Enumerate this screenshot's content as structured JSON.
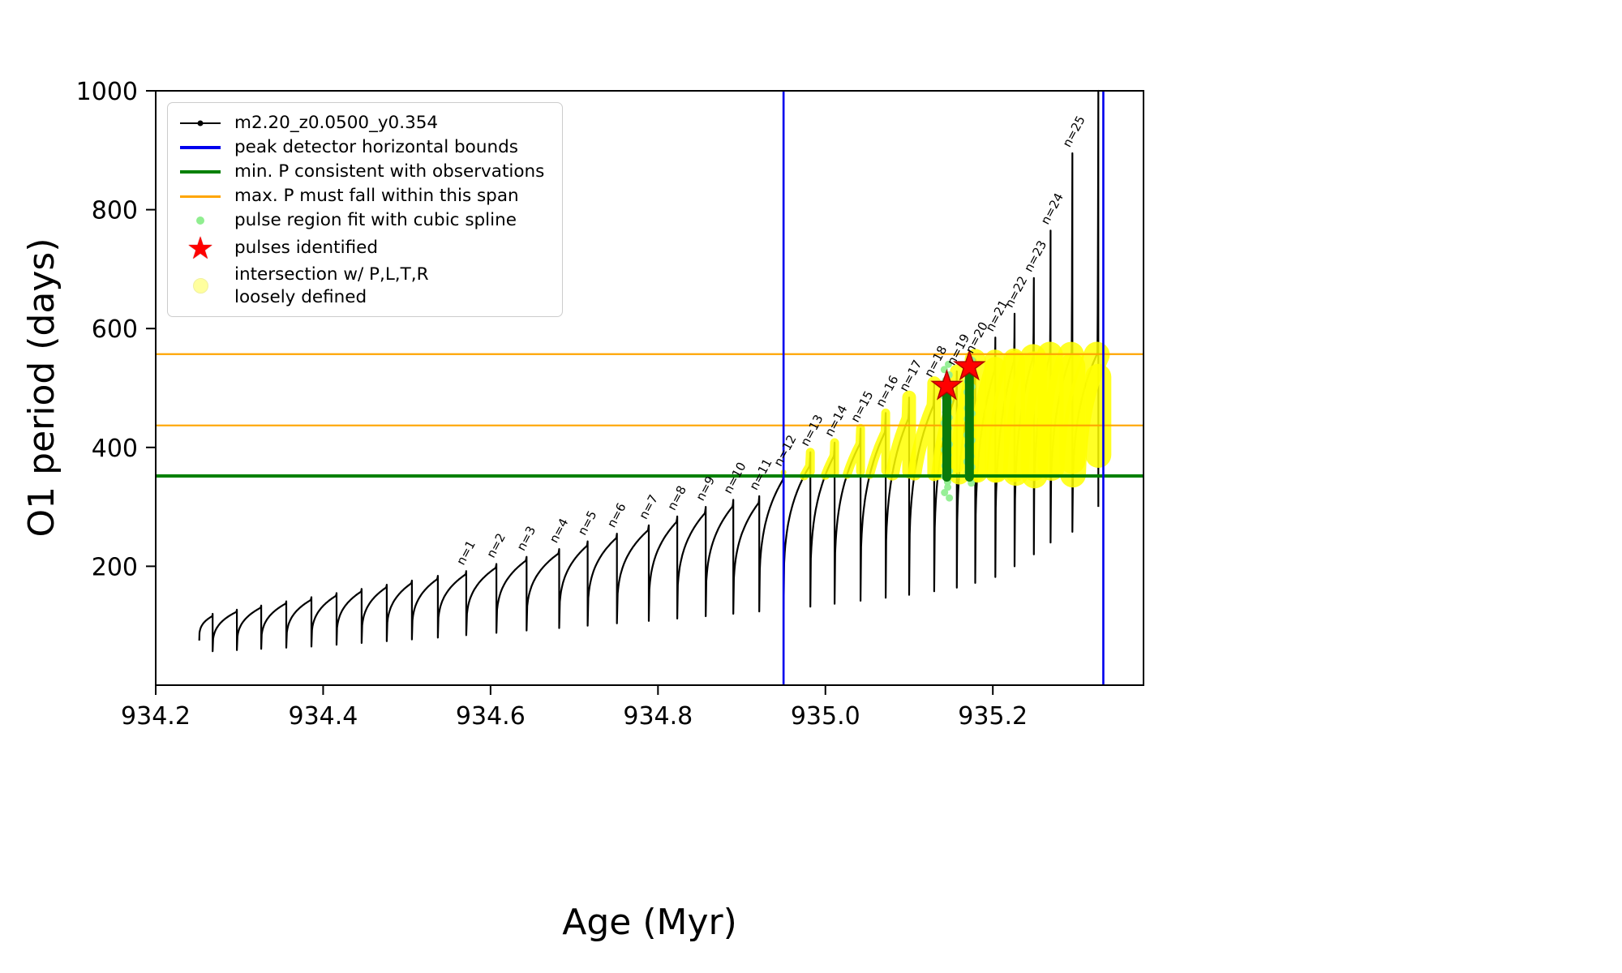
{
  "chart_data": {
    "type": "line",
    "title": "",
    "xlabel": "Age (Myr)",
    "ylabel": "O1 period (days)",
    "xlim": [
      934.2,
      935.38
    ],
    "ylim": [
      0,
      1000
    ],
    "xticks": [
      934.2,
      934.4,
      934.6,
      934.8,
      935.0,
      935.2
    ],
    "xtick_labels": [
      "934.2",
      "934.4",
      "934.6",
      "934.8",
      "935.0",
      "935.2"
    ],
    "yticks": [
      200,
      400,
      600,
      800,
      1000
    ],
    "ytick_labels": [
      "200",
      "400",
      "600",
      "800",
      "1000"
    ],
    "grid": false,
    "legend_position": "upper-left",
    "legend": [
      {
        "marker": "line-with-dot",
        "label": "m2.20_z0.0500_y0.354"
      },
      {
        "marker": "blue-line",
        "label": "peak detector horizontal bounds"
      },
      {
        "marker": "green-line",
        "label": "min. P consistent with observations"
      },
      {
        "marker": "orange-line",
        "label": "max. P must fall within this span"
      },
      {
        "marker": "lightgreen-dot",
        "label": "pulse region fit with cubic spline"
      },
      {
        "marker": "red-star",
        "label": "pulses identified"
      },
      {
        "marker": "yellow-dot",
        "label": "intersection w/ P,L,T,R\nloosely defined"
      }
    ],
    "colors": {
      "series": "#000000",
      "peak_bounds": "#0000ee",
      "min_p_line": "#008000",
      "max_p_lines": "#ffa500",
      "spline_dots": "#90ee90",
      "pulse_star": "#ff0000",
      "intersection": "#ffff00",
      "spline_bar": "#0a7a0a",
      "pulse_labels": "#1a1a1a"
    },
    "series_label": "m2.20_z0.0500_y0.354",
    "peak_detector_bounds_x": [
      934.95,
      935.332
    ],
    "min_P": 352,
    "max_P_span": [
      437,
      557
    ],
    "intersection_band": {
      "x": [
        934.95,
        935.332
      ],
      "p": [
        352,
        557
      ]
    },
    "pulses_identified": [
      {
        "age": 935.145,
        "period": 503
      },
      {
        "age": 935.172,
        "period": 536
      }
    ],
    "spline_regions": [
      {
        "age": 935.145,
        "dots_span": [
          315,
          540
        ],
        "bar_span": [
          350,
          498
        ]
      },
      {
        "age": 935.172,
        "dots_span": [
          340,
          552
        ],
        "bar_span": [
          350,
          524
        ]
      }
    ],
    "start_age": 934.252,
    "final_drop_to": 300,
    "cycles": [
      {
        "end": 934.268,
        "lo": 75,
        "sh": 116,
        "pk": 120,
        "n": null
      },
      {
        "end": 934.297,
        "lo": 57,
        "sh": 123,
        "pk": 127,
        "n": null
      },
      {
        "end": 934.326,
        "lo": 59,
        "sh": 130,
        "pk": 134,
        "n": null
      },
      {
        "end": 934.356,
        "lo": 61,
        "sh": 137,
        "pk": 141,
        "n": null
      },
      {
        "end": 934.386,
        "lo": 63,
        "sh": 143,
        "pk": 148,
        "n": null
      },
      {
        "end": 934.416,
        "lo": 65,
        "sh": 150,
        "pk": 155,
        "n": null
      },
      {
        "end": 934.446,
        "lo": 68,
        "sh": 157,
        "pk": 162,
        "n": null
      },
      {
        "end": 934.476,
        "lo": 71,
        "sh": 164,
        "pk": 169,
        "n": null
      },
      {
        "end": 934.506,
        "lo": 74,
        "sh": 171,
        "pk": 176,
        "n": null
      },
      {
        "end": 934.537,
        "lo": 77,
        "sh": 178,
        "pk": 184,
        "n": null
      },
      {
        "end": 934.571,
        "lo": 80,
        "sh": 186,
        "pk": 192,
        "n": 1
      },
      {
        "end": 934.607,
        "lo": 84,
        "sh": 197,
        "pk": 204,
        "n": 2
      },
      {
        "end": 934.643,
        "lo": 88,
        "sh": 209,
        "pk": 216,
        "n": 3
      },
      {
        "end": 934.682,
        "lo": 92,
        "sh": 221,
        "pk": 229,
        "n": 4
      },
      {
        "end": 934.716,
        "lo": 96,
        "sh": 234,
        "pk": 242,
        "n": 5
      },
      {
        "end": 934.751,
        "lo": 100,
        "sh": 247,
        "pk": 255,
        "n": 6
      },
      {
        "end": 934.789,
        "lo": 104,
        "sh": 260,
        "pk": 269,
        "n": 7
      },
      {
        "end": 934.823,
        "lo": 108,
        "sh": 274,
        "pk": 284,
        "n": 8
      },
      {
        "end": 934.857,
        "lo": 112,
        "sh": 289,
        "pk": 300,
        "n": 9
      },
      {
        "end": 934.89,
        "lo": 116,
        "sh": 300,
        "pk": 312,
        "n": 10
      },
      {
        "end": 934.921,
        "lo": 120,
        "sh": 306,
        "pk": 318,
        "n": 11
      },
      {
        "end": 934.95,
        "lo": 124,
        "sh": 345,
        "pk": 358,
        "n": 12
      },
      {
        "end": 934.982,
        "lo": 128,
        "sh": 368,
        "pk": 392,
        "n": 13
      },
      {
        "end": 935.011,
        "lo": 132,
        "sh": 385,
        "pk": 408,
        "n": 14
      },
      {
        "end": 935.042,
        "lo": 137,
        "sh": 405,
        "pk": 432,
        "n": 15
      },
      {
        "end": 935.072,
        "lo": 142,
        "sh": 425,
        "pk": 458,
        "n": 16
      },
      {
        "end": 935.1,
        "lo": 147,
        "sh": 448,
        "pk": 484,
        "n": 17
      },
      {
        "end": 935.13,
        "lo": 152,
        "sh": 470,
        "pk": 508,
        "n": 18
      },
      {
        "end": 935.157,
        "lo": 158,
        "sh": 490,
        "pk": 528,
        "n": 19
      },
      {
        "end": 935.179,
        "lo": 164,
        "sh": 512,
        "pk": 548,
        "n": 20
      },
      {
        "end": 935.203,
        "lo": 172,
        "sh": 530,
        "pk": 585,
        "n": 21
      },
      {
        "end": 935.226,
        "lo": 182,
        "sh": 545,
        "pk": 625,
        "n": 22
      },
      {
        "end": 935.249,
        "lo": 200,
        "sh": 552,
        "pk": 685,
        "n": 23
      },
      {
        "end": 935.269,
        "lo": 220,
        "sh": 556,
        "pk": 765,
        "n": 24
      },
      {
        "end": 935.295,
        "lo": 240,
        "sh": 558,
        "pk": 895,
        "n": 25
      },
      {
        "end": 935.326,
        "lo": 258,
        "sh": 558,
        "pk": 1000,
        "n": null
      }
    ]
  }
}
